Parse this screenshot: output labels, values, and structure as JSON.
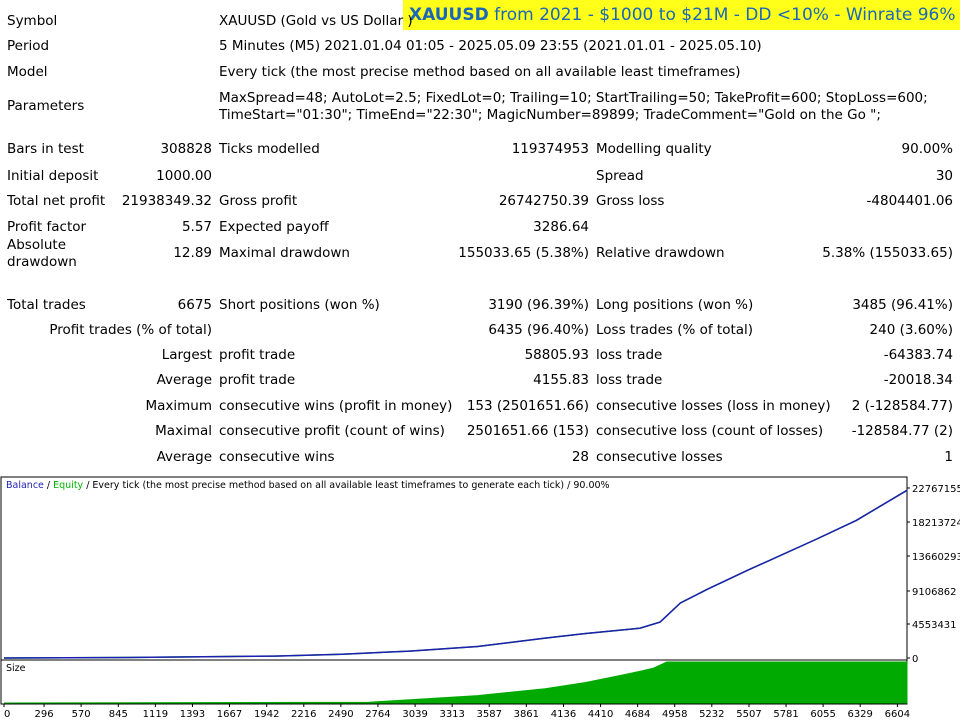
{
  "banner": {
    "symbol": "XAUUSD",
    "text": " from 2021 - $1000 to $21M - DD <10% - Winrate 96%"
  },
  "report": {
    "symbol": {
      "label": "Symbol",
      "value": "XAUUSD (Gold vs US Dollar )"
    },
    "period": {
      "label": "Period",
      "value": "5 Minutes (M5) 2021.01.04 01:05 - 2025.05.09 23:55 (2021.01.01 - 2025.05.10)"
    },
    "model": {
      "label": "Model",
      "value": "Every tick (the most precise method based on all available least timeframes)"
    },
    "parameters": {
      "label": "Parameters",
      "line1": "MaxSpread=48; AutoLot=2.5; FixedLot=0; Trailing=10; StartTrailing=50; TakeProfit=600; StopLoss=600;",
      "line2": "TimeStart=\"01:30\"; TimeEnd=\"22:30\"; MagicNumber=89899; TradeComment=\"Gold on the Go \";"
    },
    "rows": [
      {
        "l1": "Bars in test",
        "v1": "308828",
        "l2": "Ticks modelled",
        "v2": "119374953",
        "l3": "Modelling quality",
        "v3": "90.00%"
      },
      {
        "l1": "Initial deposit",
        "v1": "1000.00",
        "l2": "",
        "v2": "",
        "l3": "Spread",
        "v3": "30"
      },
      {
        "l1": "Total net profit",
        "v1": "21938349.32",
        "l2": "Gross profit",
        "v2": "26742750.39",
        "l3": "Gross loss",
        "v3": "-4804401.06"
      },
      {
        "l1": "Profit factor",
        "v1": "5.57",
        "l2": "Expected payoff",
        "v2": "3286.64",
        "l3": "",
        "v3": ""
      },
      {
        "l1": "Absolute",
        "l1b": "drawdown",
        "v1": "12.89",
        "l2": "Maximal drawdown",
        "v2": "155033.65 (5.38%)",
        "l3": "Relative drawdown",
        "v3": "5.38% (155033.65)"
      },
      {
        "l1": "Total trades",
        "v1": "6675",
        "l2": "Short positions (won %)",
        "v2": "3190 (96.39%)",
        "l3": "Long positions (won %)",
        "v3": "3485 (96.41%)"
      },
      {
        "l1": "",
        "v1": "Profit trades (% of total)",
        "l2": "",
        "v2": "6435 (96.40%)",
        "l3": "Loss trades (% of total)",
        "v3": "240 (3.60%)"
      },
      {
        "l1": "",
        "v1": "Largest",
        "l2": "profit trade",
        "v2": "58805.93",
        "l3": "loss trade",
        "v3": "-64383.74"
      },
      {
        "l1": "",
        "v1": "Average",
        "l2": "profit trade",
        "v2": "4155.83",
        "l3": "loss trade",
        "v3": "-20018.34"
      },
      {
        "l1": "",
        "v1": "Maximum",
        "l2": "consecutive wins (profit in money)",
        "v2": "153 (2501651.66)",
        "l3": "consecutive losses (loss in money)",
        "v3": "2 (-128584.77)"
      },
      {
        "l1": "",
        "v1": "Maximal",
        "l2": "consecutive profit (count of wins)",
        "v2": "2501651.66 (153)",
        "l3": "consecutive loss (count of losses)",
        "v3": "-128584.77 (2)"
      },
      {
        "l1": "",
        "v1": "Average",
        "l2": "consecutive wins",
        "v2": "28",
        "l3": "consecutive losses",
        "v3": "1"
      }
    ]
  },
  "chart": {
    "legend_balance": "Balance",
    "legend_sep": " / ",
    "legend_equity": "Equity",
    "legend_rest": " / Every tick (the most precise method based on all available least timeframes to generate each tick) / 90.00%",
    "size_label": "Size",
    "balance_color": "#1e1eb4",
    "equity_color": "#00b400",
    "size_color": "#00aa00",
    "y_ticks": [
      "22767155",
      "18213724",
      "13660293",
      "9106862",
      "4553431",
      "0"
    ],
    "x_ticks": [
      "0",
      "296",
      "570",
      "845",
      "1119",
      "1393",
      "1667",
      "1942",
      "2216",
      "2490",
      "2764",
      "3039",
      "3313",
      "3587",
      "3861",
      "4136",
      "4410",
      "4684",
      "4958",
      "5232",
      "5507",
      "5781",
      "6055",
      "6329",
      "6604"
    ]
  },
  "chart_data": {
    "type": "line",
    "title": "Balance / Equity / Every tick (the most precise method based on all available least timeframes to generate each tick) / 90.00%",
    "xlabel": "",
    "ylabel": "",
    "ylim": [
      0,
      22767155
    ],
    "xlim": [
      0,
      6675
    ],
    "series": [
      {
        "name": "Balance",
        "x": [
          0,
          1000,
          2000,
          2500,
          3000,
          3500,
          4000,
          4300,
          4700,
          4850,
          5000,
          5200,
          5500,
          6000,
          6300,
          6675
        ],
        "y": [
          0,
          80000,
          250000,
          500000,
          900000,
          1500000,
          2600000,
          3200000,
          3900000,
          4700000,
          7200000,
          9000000,
          11500000,
          15500000,
          18000000,
          21938349
        ]
      },
      {
        "name": "Equity",
        "x": [
          0,
          1000,
          2000,
          2500,
          3000,
          3500,
          4000,
          4300,
          4700,
          4850,
          5000,
          5200,
          5500,
          6000,
          6300,
          6675
        ],
        "y": [
          0,
          80000,
          250000,
          500000,
          900000,
          1500000,
          2600000,
          3200000,
          3900000,
          4700000,
          7200000,
          9000000,
          11500000,
          15500000,
          18000000,
          21938349
        ]
      }
    ],
    "size_series": {
      "name": "Size",
      "x": [
        0,
        2700,
        3000,
        3500,
        4000,
        4300,
        4600,
        4800,
        4900,
        6675
      ],
      "y": [
        0,
        0.02,
        0.08,
        0.18,
        0.35,
        0.5,
        0.7,
        0.85,
        1.0,
        1.0
      ]
    },
    "grid": false,
    "legend": "top-left"
  }
}
